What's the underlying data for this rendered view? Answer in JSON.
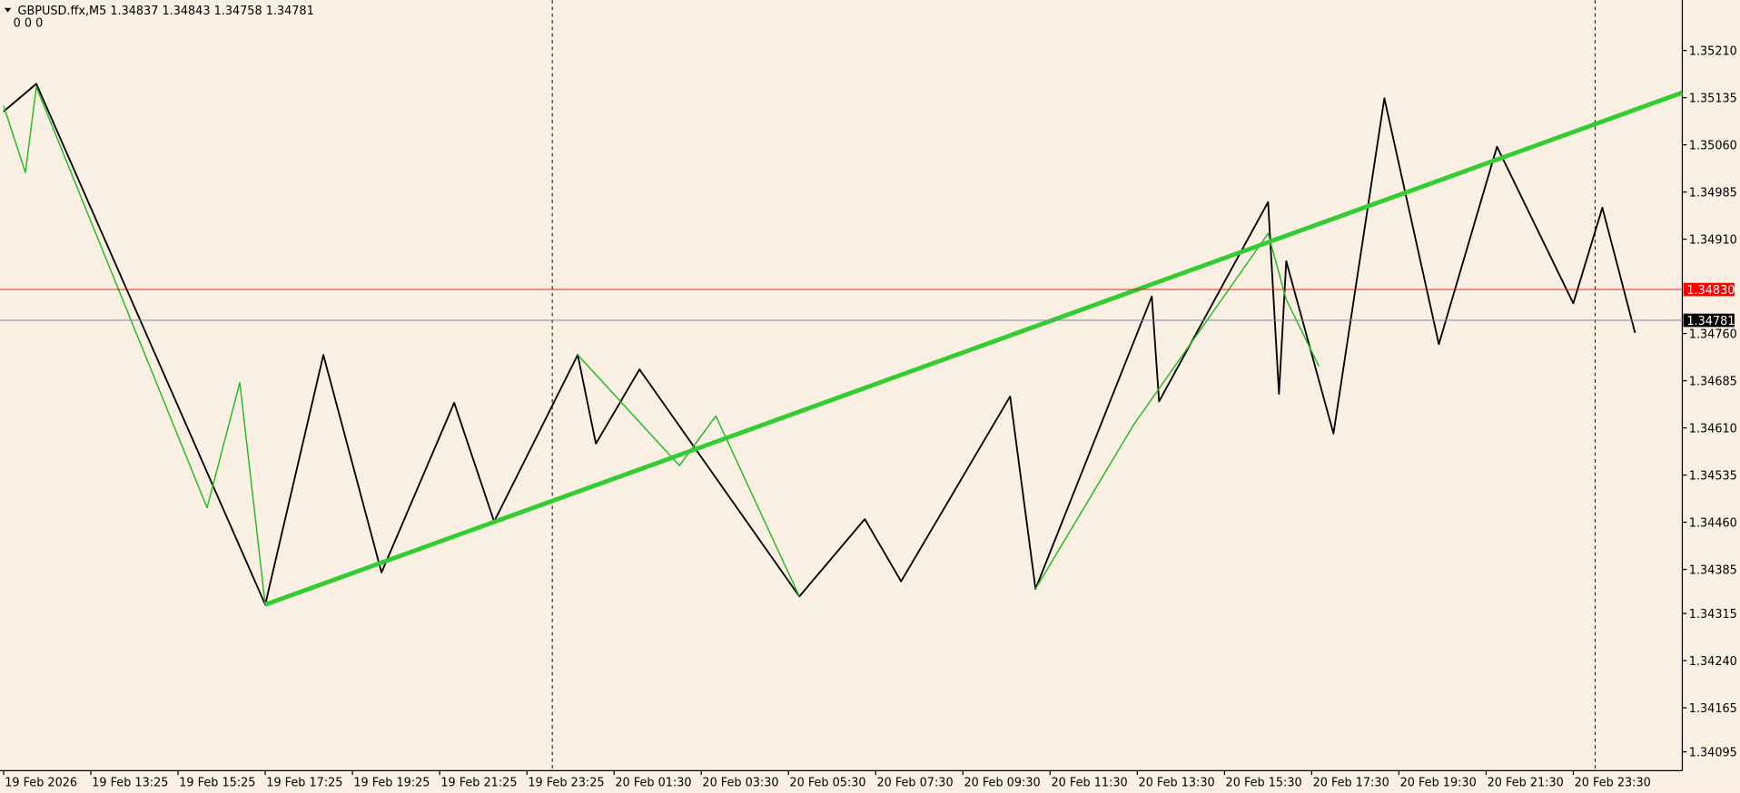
{
  "chart_data": {
    "type": "line",
    "title": "GBPUSD.ffx,M5  1.34837 1.34843 1.34758 1.34781",
    "subtitle": "0  0  0",
    "xlim": [
      -1,
      462
    ],
    "ylim": [
      1.34065,
      1.3529
    ],
    "xticks": [
      {
        "value": 0,
        "label": "19 Feb 2026"
      },
      {
        "value": 24,
        "label": "19 Feb 13:25"
      },
      {
        "value": 48,
        "label": "19 Feb 15:25"
      },
      {
        "value": 72,
        "label": "19 Feb 17:25"
      },
      {
        "value": 96,
        "label": "19 Feb 19:25"
      },
      {
        "value": 120,
        "label": "19 Feb 21:25"
      },
      {
        "value": 144,
        "label": "19 Feb 23:25"
      },
      {
        "value": 168,
        "label": "20 Feb 01:30"
      },
      {
        "value": 192,
        "label": "20 Feb 03:30"
      },
      {
        "value": 216,
        "label": "20 Feb 05:30"
      },
      {
        "value": 240,
        "label": "20 Feb 07:30"
      },
      {
        "value": 264,
        "label": "20 Feb 09:30"
      },
      {
        "value": 288,
        "label": "20 Feb 11:30"
      },
      {
        "value": 312,
        "label": "20 Feb 13:30"
      },
      {
        "value": 336,
        "label": "20 Feb 15:30"
      },
      {
        "value": 360,
        "label": "20 Feb 17:30"
      },
      {
        "value": 384,
        "label": "20 Feb 19:30"
      },
      {
        "value": 408,
        "label": "20 Feb 21:30"
      },
      {
        "value": 432,
        "label": "20 Feb 23:30"
      }
    ],
    "yticks": [
      {
        "value": 1.3521,
        "label": "1.35210"
      },
      {
        "value": 1.35135,
        "label": "1.35135"
      },
      {
        "value": 1.3506,
        "label": "1.35060"
      },
      {
        "value": 1.34985,
        "label": "1.34985"
      },
      {
        "value": 1.3491,
        "label": "1.34910"
      },
      {
        "value": 1.3476,
        "label": "1.34760"
      },
      {
        "value": 1.34685,
        "label": "1.34685"
      },
      {
        "value": 1.3461,
        "label": "1.34610"
      },
      {
        "value": 1.34535,
        "label": "1.34535"
      },
      {
        "value": 1.3446,
        "label": "1.34460"
      },
      {
        "value": 1.34385,
        "label": "1.34385"
      },
      {
        "value": 1.34315,
        "label": "1.34315"
      },
      {
        "value": 1.3424,
        "label": "1.34240"
      },
      {
        "value": 1.34165,
        "label": "1.34165"
      },
      {
        "value": 1.34095,
        "label": "1.34095"
      }
    ],
    "levels": [
      {
        "value": 1.3483,
        "label": "1.34830",
        "color": "#ff0000"
      },
      {
        "value": 1.34781,
        "label": "1.34781",
        "color": "#000000"
      }
    ],
    "separators": [
      151,
      438
    ],
    "series": [
      {
        "color": "#000000",
        "width": 1.5,
        "x": [
          0,
          9,
          72,
          88,
          104,
          124,
          135,
          158,
          163,
          175,
          219,
          237,
          247,
          277,
          284,
          316,
          318,
          348,
          351,
          353,
          366,
          380,
          395,
          411,
          432,
          440,
          449
        ],
        "values": [
          1.35113,
          1.35157,
          1.34329,
          1.34726,
          1.3438,
          1.3465,
          1.34461,
          1.34726,
          1.34585,
          1.34703,
          1.34342,
          1.34465,
          1.34366,
          1.3466,
          1.34354,
          1.34819,
          1.34652,
          1.34969,
          1.34664,
          1.34875,
          1.34601,
          1.35134,
          1.34743,
          1.35057,
          1.34808,
          1.3496,
          1.34761
        ]
      },
      {
        "color": "#22bb22",
        "width": 1.2,
        "x": [
          0,
          6,
          9,
          56,
          65,
          72,
          null,
          158,
          186,
          196,
          219,
          null,
          284,
          311,
          348,
          353,
          362
        ],
        "values": [
          1.35122,
          1.35016,
          1.35152,
          1.34483,
          1.34682,
          1.34329,
          null,
          1.34726,
          1.3455,
          1.34629,
          1.34342,
          null,
          1.34354,
          1.34615,
          1.34919,
          1.34814,
          1.34708
        ]
      },
      {
        "color": "#33cc33",
        "width": 4,
        "x": [
          72,
          462
        ],
        "values": [
          1.34329,
          1.35143
        ]
      }
    ]
  }
}
